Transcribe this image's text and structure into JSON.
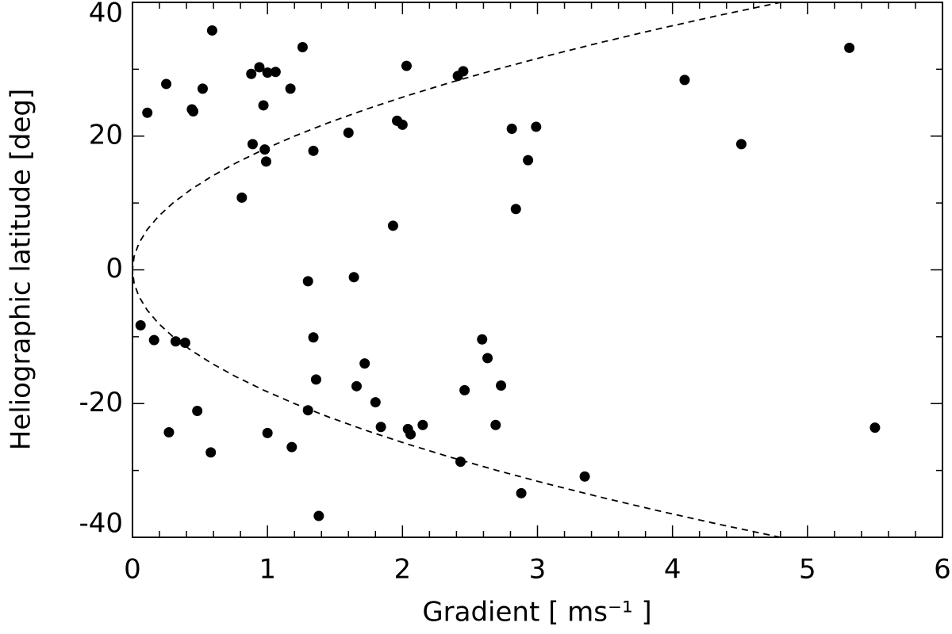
{
  "chart_data": {
    "type": "scatter",
    "xlabel": "Gradient [ ms⁻¹ ]",
    "ylabel": "Heliographic latitude [deg]",
    "xlim": [
      0,
      6
    ],
    "ylim": [
      -40,
      40
    ],
    "xticks": [
      0,
      1,
      2,
      3,
      4,
      5,
      6
    ],
    "yticks": [
      -40,
      -20,
      0,
      20,
      40
    ],
    "xminorticks": [
      0.2,
      0.4,
      0.6,
      0.8,
      1.2,
      1.4,
      1.6,
      1.8,
      2.2,
      2.4,
      2.6,
      2.8,
      3.2,
      3.4,
      3.6,
      3.8,
      4.2,
      4.4,
      4.6,
      4.8,
      5.2,
      5.4,
      5.6,
      5.8
    ],
    "yminorticks": [
      -30,
      -10,
      10,
      30
    ],
    "series": [
      {
        "type": "scatter",
        "color": "#000000",
        "x": [
          0.11,
          0.25,
          0.44,
          0.45,
          0.52,
          0.59,
          0.88,
          0.94,
          1.0,
          1.06,
          0.97,
          1.17,
          1.26,
          0.89,
          0.98,
          0.99,
          0.81,
          1.34,
          1.6,
          2.03,
          1.96,
          2.0,
          2.41,
          2.45,
          2.81,
          2.99,
          2.93,
          2.84,
          1.93,
          4.09,
          4.51,
          5.31,
          1.3,
          1.64,
          0.06,
          0.16,
          0.32,
          0.39,
          1.34,
          1.72,
          1.36,
          1.66,
          1.8,
          2.46,
          2.59,
          2.63,
          2.73,
          0.48,
          1.3,
          1.84,
          2.04,
          2.06,
          2.15,
          2.69,
          0.27,
          1.0,
          0.58,
          1.18,
          2.43,
          3.35,
          2.88,
          1.38,
          5.5
        ],
        "values": [
          23.5,
          27.8,
          24.0,
          23.7,
          27.1,
          35.8,
          29.3,
          30.3,
          29.5,
          29.6,
          24.6,
          27.1,
          33.3,
          18.8,
          18.0,
          16.2,
          10.8,
          17.8,
          20.5,
          30.5,
          22.3,
          21.7,
          29.0,
          29.7,
          21.1,
          21.4,
          16.4,
          9.1,
          6.6,
          28.4,
          18.8,
          33.2,
          -1.7,
          -1.1,
          -8.3,
          -10.5,
          -10.7,
          -10.9,
          -10.1,
          -14.0,
          -16.4,
          -17.4,
          -19.8,
          -18.0,
          -10.4,
          -13.2,
          -17.3,
          -21.1,
          -21.0,
          -23.5,
          -23.8,
          -24.6,
          -23.2,
          -23.2,
          -24.3,
          -24.4,
          -27.3,
          -26.5,
          -28.7,
          -30.9,
          -33.4,
          -36.8,
          -23.6
        ]
      },
      {
        "type": "line",
        "style": "dashed",
        "color": "#000000",
        "x": [
          4.8,
          4.332,
          3.888,
          3.468,
          3.072,
          2.7,
          2.352,
          2.028,
          1.728,
          1.452,
          1.2,
          0.972,
          0.768,
          0.588,
          0.432,
          0.3,
          0.192,
          0.108,
          0.048,
          0.012,
          0,
          0.012,
          0.048,
          0.108,
          0.192,
          0.3,
          0.432,
          0.588,
          0.768,
          0.972,
          1.2,
          1.452,
          1.728,
          2.028,
          2.352,
          2.7,
          3.072,
          3.468,
          3.888,
          4.332,
          4.8
        ],
        "values": [
          -40,
          -38,
          -36,
          -34,
          -32,
          -30,
          -28,
          -26,
          -24,
          -22,
          -20,
          -18,
          -16,
          -14,
          -12,
          -10,
          -8,
          -6,
          -4,
          -2,
          0,
          2,
          4,
          6,
          8,
          10,
          12,
          14,
          16,
          18,
          20,
          22,
          24,
          26,
          28,
          30,
          32,
          34,
          36,
          38,
          40
        ]
      }
    ]
  }
}
